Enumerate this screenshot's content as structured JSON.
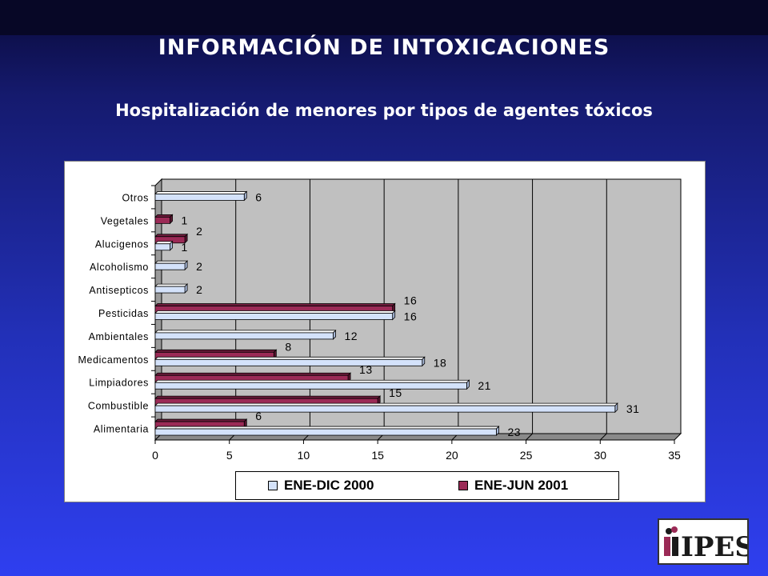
{
  "header": {
    "title": "INFORMACIÓN DE INTOXICACIONES",
    "subtitle": "Hospitalización de menores por tipos de agentes tóxicos"
  },
  "logo": {
    "text": "IPES"
  },
  "chart_data": {
    "type": "bar",
    "orientation": "horizontal",
    "categories": [
      "Otros",
      "Vegetales",
      "Alucigenos",
      "Alcoholismo",
      "Antisepticos",
      "Pesticidas",
      "Ambientales",
      "Medicamentos",
      "Limpiadores",
      "Combustible",
      "Alimentaria"
    ],
    "series": [
      {
        "name": "ENE-DIC 2000",
        "values": [
          6,
          null,
          1,
          2,
          2,
          16,
          12,
          18,
          21,
          31,
          23
        ],
        "color": "#d4e2fa"
      },
      {
        "name": "ENE-JUN 2001",
        "values": [
          null,
          1,
          2,
          null,
          null,
          16,
          null,
          8,
          13,
          15,
          6
        ],
        "color": "#9b2a56"
      }
    ],
    "xlim": [
      0,
      35
    ],
    "xticks": [
      0,
      5,
      10,
      15,
      20,
      25,
      30,
      35
    ],
    "grid": true,
    "legend_position": "bottom",
    "plot_background": "#c0c0c0"
  }
}
